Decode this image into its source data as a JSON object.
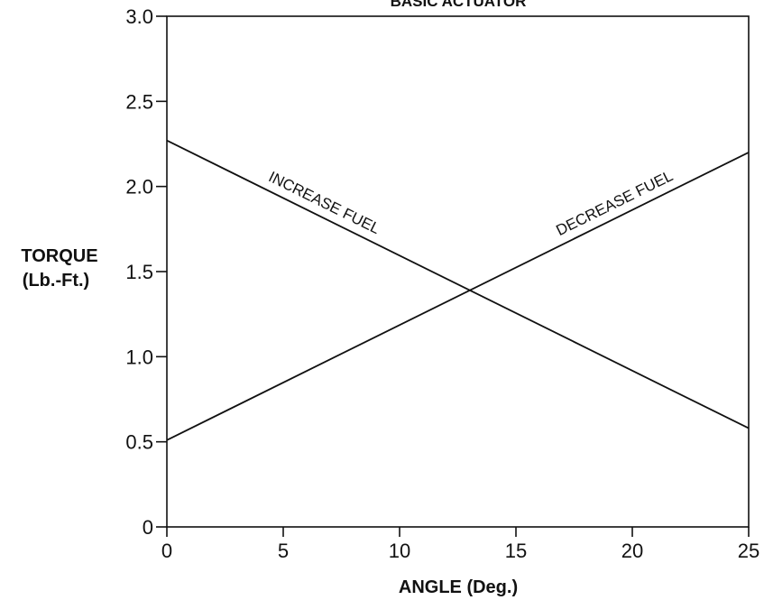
{
  "chart_data": {
    "type": "line",
    "title": "BASIC ACTUATOR",
    "xlabel": "ANGLE (Deg.)",
    "ylabel_lines": [
      "TORQUE",
      "(Lb.-Ft.)"
    ],
    "xlim": [
      0,
      25
    ],
    "ylim": [
      0,
      3.0
    ],
    "x_ticks": [
      0,
      5,
      10,
      15,
      20,
      25
    ],
    "x_tick_labels": [
      "0",
      "5",
      "10",
      "15",
      "20",
      "25"
    ],
    "y_ticks": [
      0,
      0.5,
      1.0,
      1.5,
      2.0,
      2.5,
      3.0
    ],
    "y_tick_labels": [
      "0",
      "0.5",
      "1.0",
      "1.5",
      "2.0",
      "2.5",
      "3.0"
    ],
    "grid": false,
    "line_color": "#111111",
    "series": [
      {
        "name": "INCREASE FUEL",
        "x": [
          0,
          25
        ],
        "y": [
          2.27,
          0.58
        ]
      },
      {
        "name": "DECREASE FUEL",
        "x": [
          0,
          25
        ],
        "y": [
          0.51,
          2.2
        ]
      }
    ]
  }
}
